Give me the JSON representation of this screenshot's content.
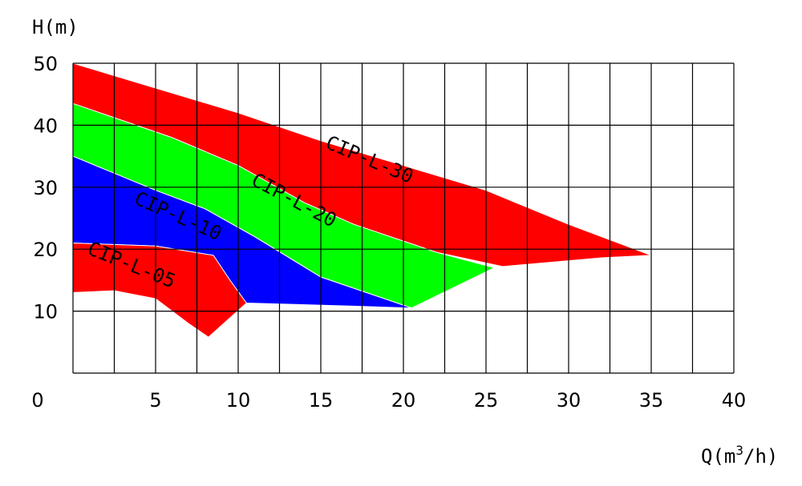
{
  "chart_data": {
    "type": "area",
    "xlabel": "Q(m",
    "xlabel_sup": "3",
    "xlabel_tail": "/h)",
    "ylabel": "H(m)",
    "xlim": [
      0,
      40
    ],
    "ylim": [
      0,
      50
    ],
    "x_ticks": [
      0,
      5,
      10,
      15,
      20,
      25,
      30,
      35,
      40
    ],
    "y_ticks": [
      10,
      20,
      30,
      40,
      50
    ],
    "grid": true,
    "grid_x_step": 2.5,
    "grid_y_step": 10,
    "colors": {
      "red": "#ff0000",
      "green": "#00ff00",
      "blue": "#0000ff"
    },
    "series": [
      {
        "name": "CIP-L-30",
        "color": "#ff0000",
        "polygon": [
          [
            0,
            50
          ],
          [
            5,
            46
          ],
          [
            10,
            42
          ],
          [
            15,
            37.5
          ],
          [
            20,
            33.5
          ],
          [
            25,
            29.5
          ],
          [
            30,
            24
          ],
          [
            35,
            19
          ],
          [
            32,
            18.6
          ],
          [
            26,
            17.2
          ],
          [
            22,
            19.5
          ],
          [
            17,
            24
          ],
          [
            14,
            27.5
          ],
          [
            10,
            33.5
          ],
          [
            6,
            38
          ],
          [
            0,
            43.5
          ]
        ]
      },
      {
        "name": "CIP-L-20",
        "color": "#00ff00",
        "polygon": [
          [
            0,
            43.5
          ],
          [
            6,
            38
          ],
          [
            10,
            33.5
          ],
          [
            14,
            27.5
          ],
          [
            17,
            24
          ],
          [
            22,
            19.5
          ],
          [
            25.5,
            17
          ],
          [
            20.5,
            10.5
          ],
          [
            15,
            15.5
          ],
          [
            11,
            22
          ],
          [
            8,
            26.5
          ],
          [
            5,
            29.5
          ],
          [
            0,
            35
          ]
        ]
      },
      {
        "name": "CIP-L-10",
        "color": "#0000ff",
        "polygon": [
          [
            0,
            35
          ],
          [
            5,
            29.5
          ],
          [
            8,
            26.5
          ],
          [
            11,
            22
          ],
          [
            15,
            15.5
          ],
          [
            20.5,
            10.5
          ],
          [
            17,
            10.8
          ],
          [
            10.5,
            11.3
          ],
          [
            9.5,
            15
          ],
          [
            8.5,
            19
          ],
          [
            5,
            20.5
          ],
          [
            0,
            21
          ]
        ]
      },
      {
        "name": "CIP-L-05",
        "color": "#ff0000",
        "polygon": [
          [
            0,
            21
          ],
          [
            5,
            20.5
          ],
          [
            8.5,
            19
          ],
          [
            9.5,
            15
          ],
          [
            10.5,
            11.3
          ],
          [
            8.2,
            5.8
          ],
          [
            7,
            8
          ],
          [
            5,
            12
          ],
          [
            2.5,
            13.3
          ],
          [
            0,
            13
          ]
        ]
      }
    ],
    "labels": [
      {
        "text": "CIP-L-30",
        "x": 17.8,
        "y": 33.5,
        "angle": 23
      },
      {
        "text": "CIP-L-20",
        "x": 13.2,
        "y": 27.0,
        "angle": 28
      },
      {
        "text": "CIP-L-10",
        "x": 6.2,
        "y": 24.4,
        "angle": 24
      },
      {
        "text": "CIP-L-05",
        "x": 3.4,
        "y": 16.5,
        "angle": 22
      }
    ]
  }
}
